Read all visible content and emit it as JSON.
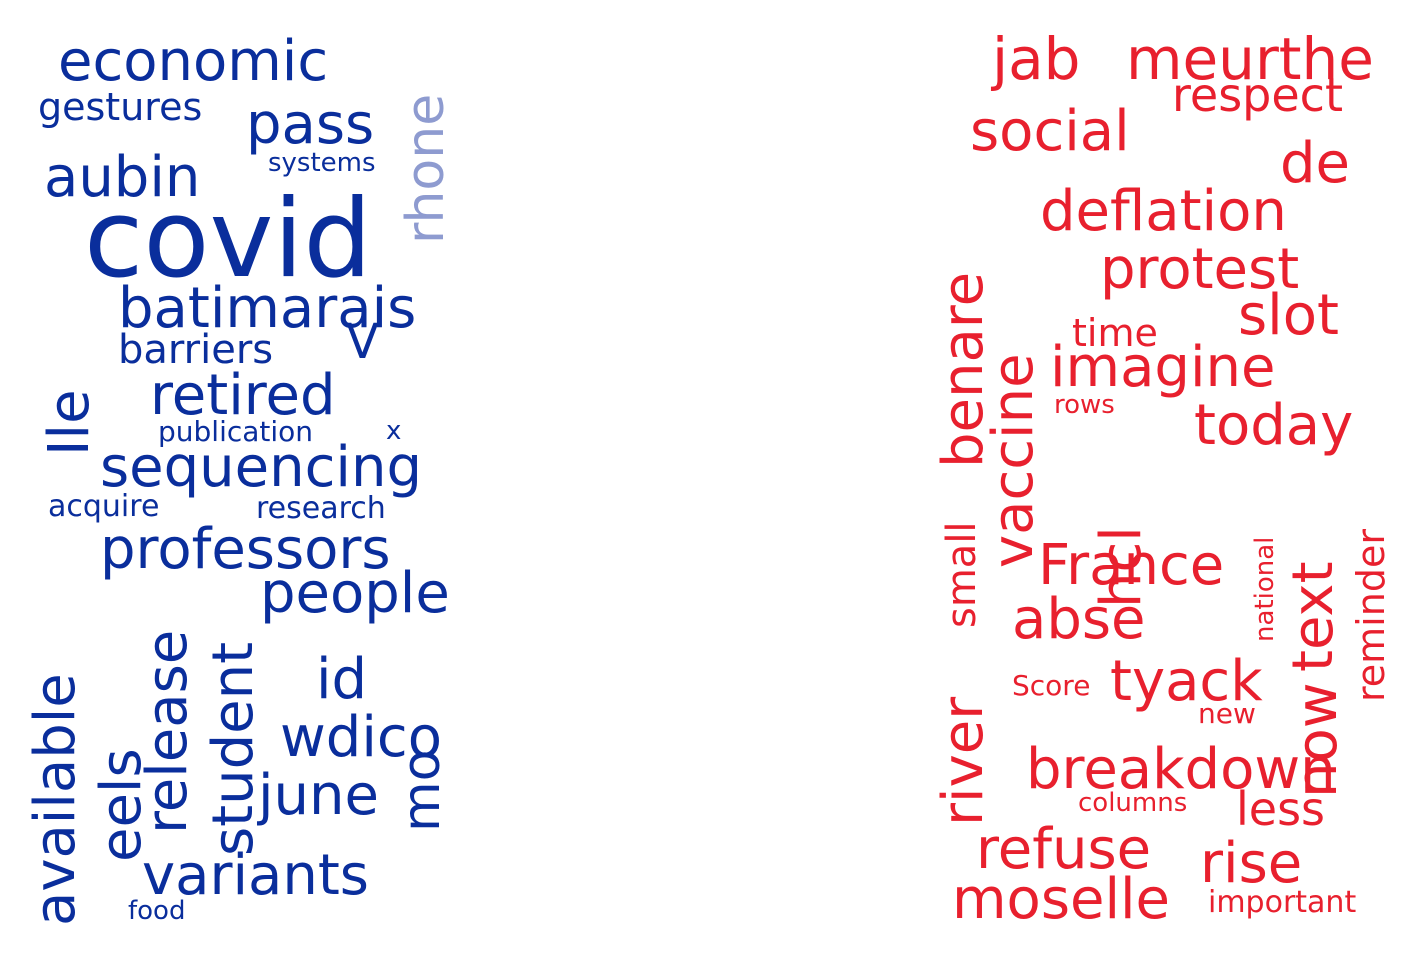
{
  "colors": {
    "blue": "#0a2e9c",
    "blue_light": "#8e9bd0",
    "red": "#e8202e"
  },
  "left_cloud": {
    "words": [
      "economic",
      "gestures",
      "pass",
      "rhone",
      "systems",
      "aubin",
      "covid",
      "batimarais",
      "V",
      "barriers",
      "retired",
      "Ile",
      "publication",
      "x",
      "sequencing",
      "acquire",
      "research",
      "professors",
      "people",
      "release",
      "student",
      "available",
      "eels",
      "id",
      "wdico",
      "june",
      "mo",
      "variants",
      "food"
    ]
  },
  "right_cloud": {
    "words": [
      "jab",
      "meurthe",
      "respect",
      "social",
      "de",
      "deflation",
      "benare",
      "vaccine",
      "protest",
      "slot",
      "time",
      "imagine",
      "rows",
      "today",
      "small",
      "hcl",
      "national",
      "text",
      "reminder",
      "France",
      "abse",
      "river",
      "Score",
      "tyack",
      "now",
      "new",
      "breakdown",
      "columns",
      "less",
      "refuse",
      "rise",
      "moselle",
      "important"
    ]
  }
}
